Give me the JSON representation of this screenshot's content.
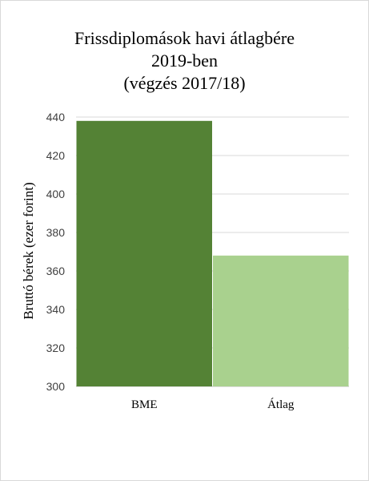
{
  "chart_data": {
    "type": "bar",
    "title_lines": [
      "Frissdiplomások havi átlagbére",
      "2019-ben",
      "(végzés 2017/18)"
    ],
    "categories": [
      "BME",
      "Átlag"
    ],
    "values": [
      438,
      368
    ],
    "colors": [
      "#548235",
      "#a9d18e"
    ],
    "xlabel": "",
    "ylabel": "Bruttó bérek (ezer forint)",
    "ylim": [
      300,
      440
    ],
    "yticks": [
      300,
      320,
      340,
      360,
      380,
      400,
      420,
      440
    ],
    "grid": true,
    "legend": "none"
  }
}
